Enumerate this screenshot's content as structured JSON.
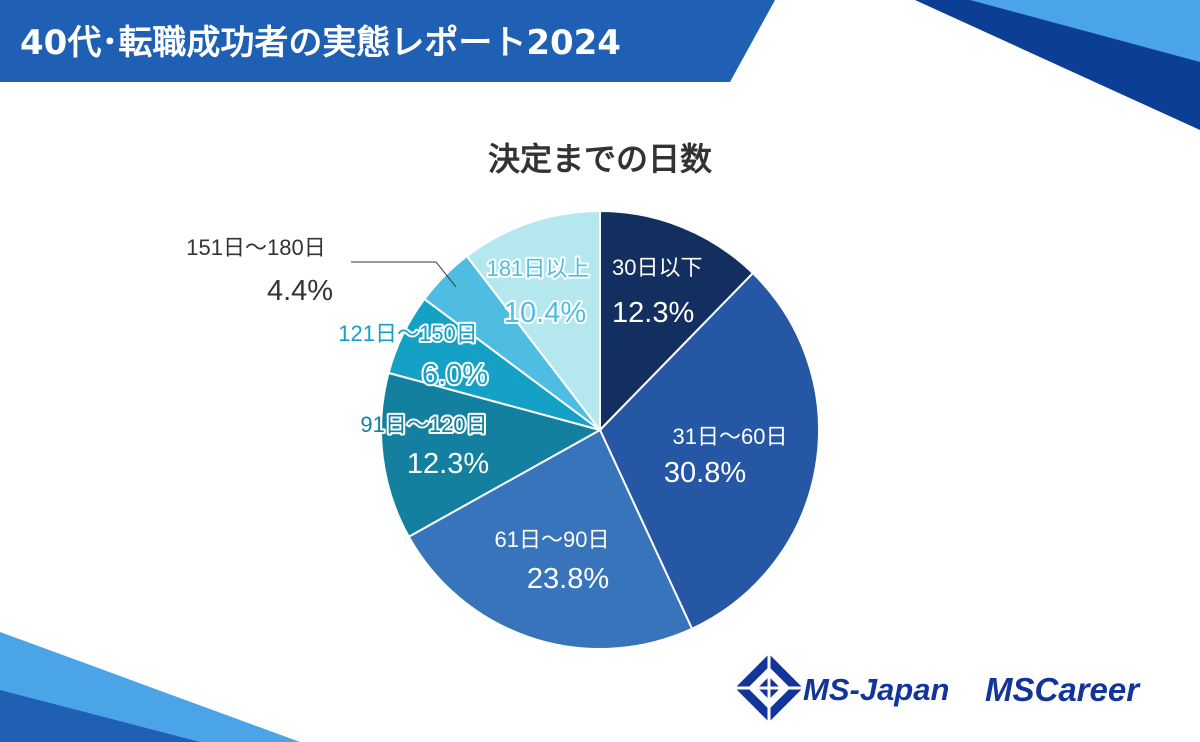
{
  "report_title": "40代･転職成功者の実態レポート2024",
  "colors": {
    "banner": "#1f5fb4",
    "banner_dark": "#0c3e95",
    "accent_light": "#4ba3e8",
    "logo_blue": "#13359a"
  },
  "logos": {
    "msjapan_text": "MS-Japan",
    "mscareer_text": "MSCareer"
  },
  "chart_data": {
    "type": "pie",
    "title": "決定までの日数",
    "categories": [
      "30日以下",
      "31日～60日",
      "61日～90日",
      "91日～120日",
      "121日～150日",
      "151日～180日",
      "181日以上"
    ],
    "values": [
      12.3,
      30.8,
      23.8,
      12.3,
      6.0,
      4.4,
      10.4
    ],
    "value_labels": [
      "12.3%",
      "30.8%",
      "23.8%",
      "12.3%",
      "6.0%",
      "4.4%",
      "10.4%"
    ],
    "colors": [
      "#132f5f",
      "#2557a4",
      "#3774bb",
      "#14809f",
      "#14a1c5",
      "#4fbde2",
      "#b4e8ee"
    ],
    "start": "12 o'clock",
    "direction": "clockwise"
  }
}
